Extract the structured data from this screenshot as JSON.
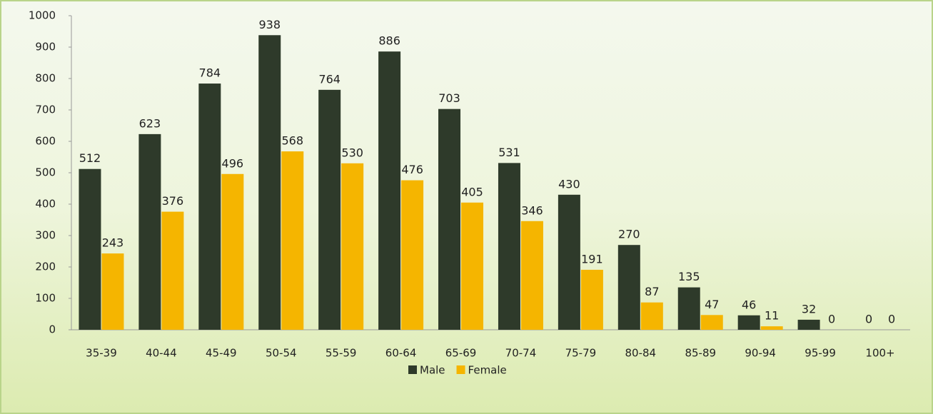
{
  "chart_data": {
    "type": "bar",
    "categories": [
      "35-39",
      "40-44",
      "45-49",
      "50-54",
      "55-59",
      "60-64",
      "65-69",
      "70-74",
      "75-79",
      "80-84",
      "85-89",
      "90-94",
      "95-99",
      "100+"
    ],
    "series": [
      {
        "name": "Male",
        "color": "#2e3a2a",
        "values": [
          512,
          623,
          784,
          938,
          764,
          886,
          703,
          531,
          430,
          270,
          135,
          46,
          32,
          0
        ]
      },
      {
        "name": "Female",
        "color": "#f5b500",
        "values": [
          243,
          376,
          496,
          568,
          530,
          476,
          405,
          346,
          191,
          87,
          47,
          11,
          0,
          0
        ]
      }
    ],
    "ylim": [
      0,
      1000
    ],
    "yticks": [
      0,
      100,
      200,
      300,
      400,
      500,
      600,
      700,
      800,
      900,
      1000
    ],
    "grid": false,
    "legend": "bottom"
  }
}
